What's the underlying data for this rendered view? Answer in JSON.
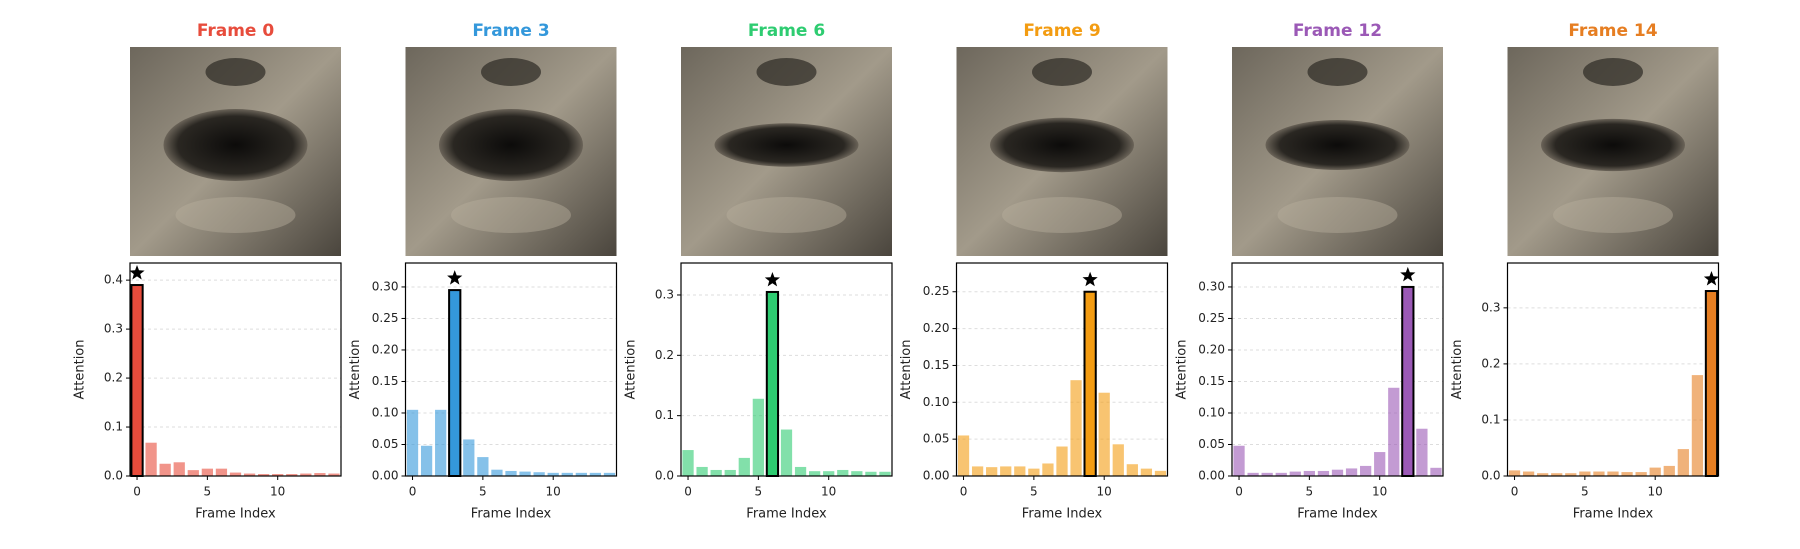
{
  "chart_data": [
    {
      "type": "bar",
      "title": "Frame 0",
      "color": "#e74c3c",
      "xlabel": "Frame Index",
      "ylabel": "Attention",
      "x": [
        0,
        1,
        2,
        3,
        4,
        5,
        6,
        7,
        8,
        9,
        10,
        11,
        12,
        13,
        14
      ],
      "values": [
        0.39,
        0.068,
        0.025,
        0.028,
        0.012,
        0.015,
        0.015,
        0.007,
        0.005,
        0.004,
        0.004,
        0.004,
        0.005,
        0.006,
        0.005
      ],
      "xlim": [
        -0.5,
        14.5
      ],
      "xticks": [
        0,
        5,
        10
      ],
      "ylim": [
        0,
        0.435
      ],
      "yticks": [
        {
          "value": 0,
          "label": "0.0"
        },
        0.1,
        0.2,
        0.3,
        0.4
      ],
      "grid": true
    },
    {
      "type": "bar",
      "title": "Frame 3",
      "color": "#3498db",
      "xlabel": "Frame Index",
      "ylabel": "Attention",
      "x": [
        0,
        1,
        2,
        3,
        4,
        5,
        6,
        7,
        8,
        9,
        10,
        11,
        12,
        13,
        14
      ],
      "values": [
        0.105,
        0.048,
        0.105,
        0.295,
        0.058,
        0.03,
        0.01,
        0.008,
        0.007,
        0.006,
        0.005,
        0.005,
        0.005,
        0.005,
        0.005
      ],
      "xlim": [
        -0.5,
        14.5
      ],
      "xticks": [
        0,
        5,
        10
      ],
      "ylim": [
        0,
        0.338
      ],
      "yticks": [
        {
          "value": 0,
          "label": "0.00"
        },
        0.05,
        {
          "value": 0.1,
          "label": "0.10"
        },
        0.15,
        {
          "value": 0.2,
          "label": "0.20"
        },
        0.25,
        {
          "value": 0.3,
          "label": "0.30"
        }
      ],
      "grid": true
    },
    {
      "type": "bar",
      "title": "Frame 6",
      "color": "#2ecc71",
      "xlabel": "Frame Index",
      "ylabel": "Attention",
      "x": [
        0,
        1,
        2,
        3,
        4,
        5,
        6,
        7,
        8,
        9,
        10,
        11,
        12,
        13,
        14
      ],
      "values": [
        0.043,
        0.015,
        0.01,
        0.01,
        0.03,
        0.128,
        0.305,
        0.077,
        0.015,
        0.008,
        0.008,
        0.01,
        0.008,
        0.007,
        0.007
      ],
      "xlim": [
        -0.5,
        14.5
      ],
      "xticks": [
        0,
        5,
        10
      ],
      "ylim": [
        0,
        0.353
      ],
      "yticks": [
        {
          "value": 0,
          "label": "0.0"
        },
        0.1,
        0.2,
        0.3
      ],
      "grid": true
    },
    {
      "type": "bar",
      "title": "Frame 9",
      "color": "#f39c12",
      "xlabel": "Frame Index",
      "ylabel": "Attention",
      "x": [
        0,
        1,
        2,
        3,
        4,
        5,
        6,
        7,
        8,
        9,
        10,
        11,
        12,
        13,
        14
      ],
      "values": [
        0.055,
        0.013,
        0.012,
        0.013,
        0.013,
        0.01,
        0.017,
        0.04,
        0.13,
        0.25,
        0.113,
        0.043,
        0.016,
        0.01,
        0.007
      ],
      "xlim": [
        -0.5,
        14.5
      ],
      "xticks": [
        0,
        5,
        10
      ],
      "ylim": [
        0,
        0.289
      ],
      "yticks": [
        {
          "value": 0,
          "label": "0.00"
        },
        0.05,
        {
          "value": 0.1,
          "label": "0.10"
        },
        0.15,
        {
          "value": 0.2,
          "label": "0.20"
        },
        0.25
      ],
      "grid": true
    },
    {
      "type": "bar",
      "title": "Frame 12",
      "color": "#9b59b6",
      "xlabel": "Frame Index",
      "ylabel": "Attention",
      "x": [
        0,
        1,
        2,
        3,
        4,
        5,
        6,
        7,
        8,
        9,
        10,
        11,
        12,
        13,
        14
      ],
      "values": [
        0.048,
        0.005,
        0.005,
        0.005,
        0.007,
        0.008,
        0.008,
        0.01,
        0.012,
        0.016,
        0.038,
        0.14,
        0.3,
        0.075,
        0.013
      ],
      "xlim": [
        -0.5,
        14.5
      ],
      "xticks": [
        0,
        5,
        10
      ],
      "ylim": [
        0,
        0.338
      ],
      "yticks": [
        {
          "value": 0,
          "label": "0.00"
        },
        0.05,
        {
          "value": 0.1,
          "label": "0.10"
        },
        0.15,
        {
          "value": 0.2,
          "label": "0.20"
        },
        0.25,
        {
          "value": 0.3,
          "label": "0.30"
        }
      ],
      "grid": true
    },
    {
      "type": "bar",
      "title": "Frame 14",
      "color": "#e67e22",
      "xlabel": "Frame Index",
      "ylabel": "Attention",
      "x": [
        0,
        1,
        2,
        3,
        4,
        5,
        6,
        7,
        8,
        9,
        10,
        11,
        12,
        13,
        14
      ],
      "values": [
        0.01,
        0.008,
        0.005,
        0.005,
        0.005,
        0.008,
        0.008,
        0.008,
        0.007,
        0.007,
        0.015,
        0.018,
        0.048,
        0.18,
        0.33
      ],
      "xlim": [
        -0.5,
        14.5
      ],
      "xticks": [
        0,
        5,
        10
      ],
      "ylim": [
        0,
        0.38
      ],
      "yticks": [
        {
          "value": 0,
          "label": "0.0"
        },
        0.1,
        0.2,
        0.3
      ],
      "grid": true
    }
  ]
}
